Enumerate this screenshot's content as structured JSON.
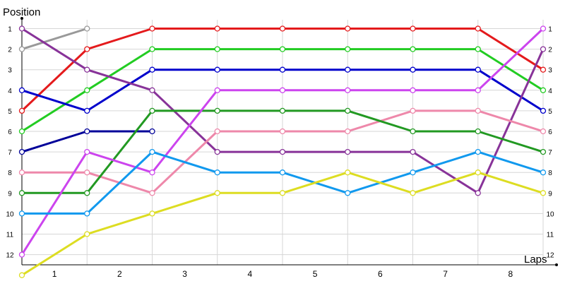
{
  "chart_data": {
    "type": "line",
    "ylabel": "Position",
    "xlabel": "Laps",
    "x_tick_labels": [
      "1",
      "2",
      "3",
      "4",
      "5",
      "6",
      "7",
      "8"
    ],
    "y_tick_labels": [
      "1",
      "2",
      "3",
      "4",
      "5",
      "6",
      "7",
      "8",
      "9",
      "10",
      "11",
      "12"
    ],
    "ylim": [
      1,
      12
    ],
    "y_inverted": true,
    "grid": true,
    "x": [
      0,
      1,
      2,
      3,
      4,
      5,
      6,
      7,
      8
    ],
    "series": [
      {
        "color": "#999999",
        "values": [
          2,
          1,
          null,
          null,
          null,
          null,
          null,
          null,
          null
        ]
      },
      {
        "color": "#e41a1c",
        "values": [
          5,
          2,
          1,
          1,
          1,
          1,
          1,
          1,
          3
        ]
      },
      {
        "color": "#22cc22",
        "values": [
          6,
          4,
          2,
          2,
          2,
          2,
          2,
          2,
          4
        ]
      },
      {
        "color": "#0000cc",
        "values": [
          4,
          5,
          3,
          3,
          3,
          3,
          3,
          3,
          5
        ]
      },
      {
        "color": "#000099",
        "values": [
          7,
          6,
          6,
          null,
          null,
          null,
          null,
          null,
          null
        ]
      },
      {
        "color": "#883399",
        "values": [
          1,
          3,
          4,
          7,
          7,
          7,
          7,
          9,
          2
        ]
      },
      {
        "color": "#ee88aa",
        "values": [
          8,
          8,
          9,
          6,
          6,
          6,
          5,
          5,
          6
        ]
      },
      {
        "color": "#229922",
        "values": [
          9,
          9,
          5,
          5,
          5,
          5,
          6,
          6,
          7
        ]
      },
      {
        "color": "#cc44ee",
        "values": [
          12,
          7,
          8,
          4,
          4,
          4,
          4,
          4,
          1
        ]
      },
      {
        "color": "#1199ee",
        "values": [
          10,
          10,
          7,
          8,
          8,
          9,
          8,
          7,
          8
        ]
      },
      {
        "color": "#dddd22",
        "values": [
          13,
          11,
          10,
          9,
          9,
          8,
          9,
          8,
          9
        ]
      }
    ]
  }
}
